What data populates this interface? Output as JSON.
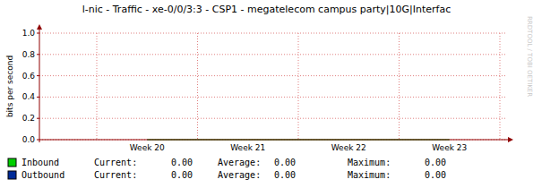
{
  "chart_data": {
    "type": "line",
    "title": "l-nic - Traffic - xe-0/0/3:3 - CSP1 - megatelecom campus party|10G|Interfac",
    "y_label": "bits per second",
    "watermark": "RRDTOOL / TOBI OETIKER",
    "categories": [
      "Week 20",
      "Week 21",
      "Week 22",
      "Week 23"
    ],
    "ylim": [
      0,
      1
    ],
    "yticks": [
      {
        "value": 0,
        "label": "0.0"
      },
      0.2,
      0.4,
      0.6,
      0.8,
      {
        "value": 1,
        "label": "1.0"
      }
    ],
    "grid": true,
    "legend": "bottom",
    "series": [
      {
        "name": "Inbound",
        "color": "#00cf00",
        "values": [
          0,
          0,
          0,
          0
        ],
        "summary": [
          {
            "label": "Current:",
            "value": "0.00"
          },
          {
            "label": "Average:",
            "value": "0.00"
          },
          {
            "label": "Maximum:",
            "value": "0.00"
          }
        ]
      },
      {
        "name": "Outbound",
        "color": "#002a97",
        "values": [
          0,
          0,
          0,
          0
        ],
        "summary": [
          {
            "label": "Current:",
            "value": "0.00"
          },
          {
            "label": "Average:",
            "value": "0.00"
          },
          {
            "label": "Maximum:",
            "value": "0.00"
          }
        ]
      }
    ]
  }
}
